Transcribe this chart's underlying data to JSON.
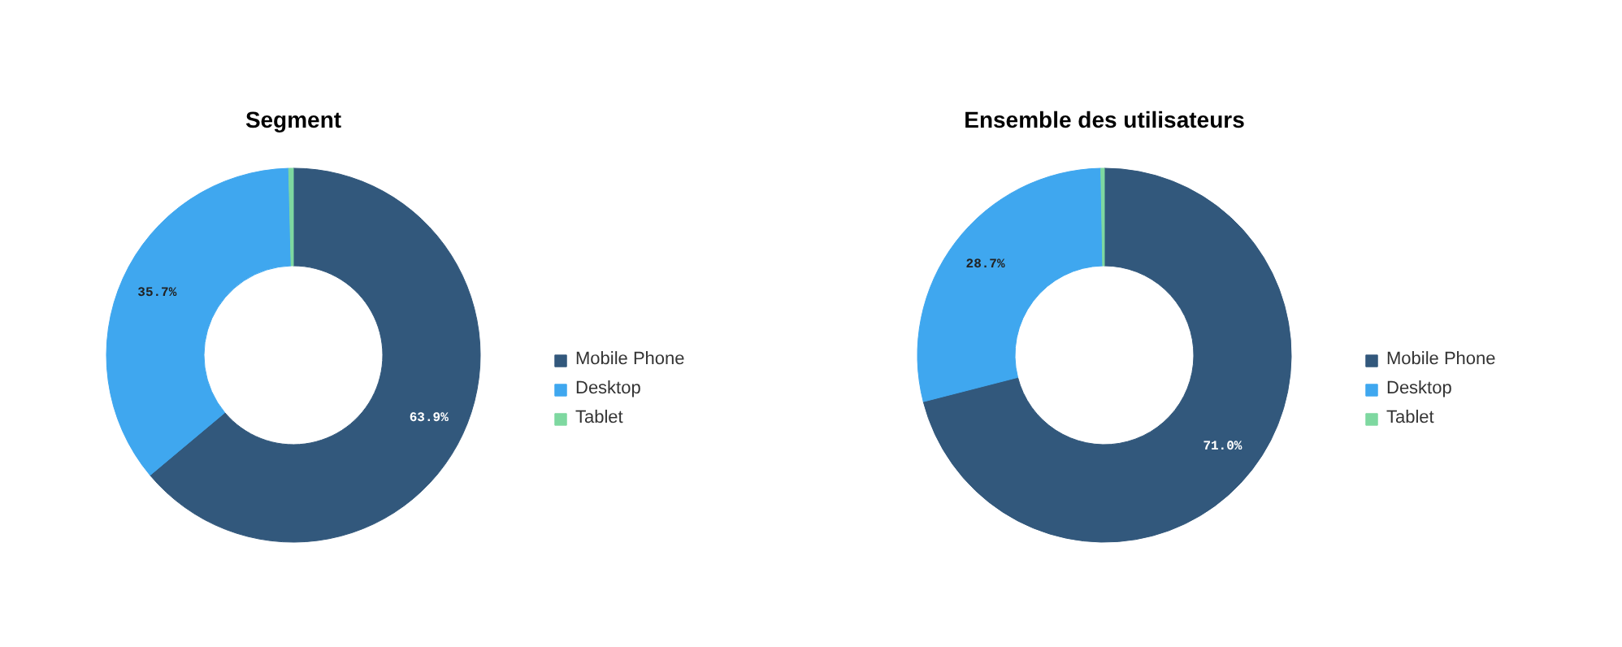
{
  "chart_data": [
    {
      "type": "donut",
      "title": "Segment",
      "categories": [
        "Mobile Phone",
        "Desktop",
        "Tablet"
      ],
      "values": [
        63.9,
        35.7,
        0.4
      ],
      "colors": [
        "#32587c",
        "#3fa7ef",
        "#7ed8a0"
      ],
      "value_labels": [
        "63.9%",
        "35.7%",
        null
      ],
      "legend": "right"
    },
    {
      "type": "donut",
      "title": "Ensemble des utilisateurs",
      "categories": [
        "Mobile Phone",
        "Desktop",
        "Tablet"
      ],
      "values": [
        71.0,
        28.7,
        0.3
      ],
      "colors": [
        "#32587c",
        "#3fa7ef",
        "#7ed8a0"
      ],
      "value_labels": [
        "71.0%",
        "28.7%",
        null
      ],
      "legend": "right"
    }
  ]
}
